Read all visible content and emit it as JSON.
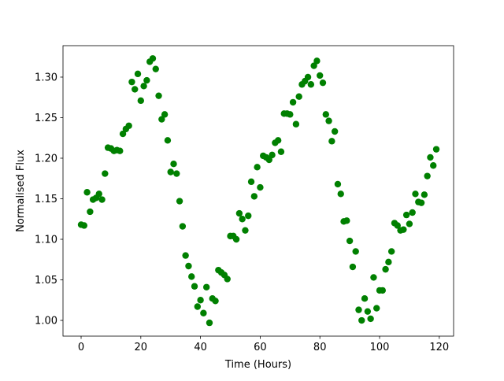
{
  "chart_data": {
    "type": "scatter",
    "x_label": "Time (Hours)",
    "y_label": "Normalised Flux",
    "color": "#008000",
    "xlim": [
      -6.07,
      124.8
    ],
    "ylim": [
      0.9806,
      1.3388
    ],
    "xticks": [
      0,
      20,
      40,
      60,
      80,
      100,
      120
    ],
    "yticks": [
      {
        "value": 1.0,
        "label": "1.00"
      },
      {
        "value": 1.05,
        "label": "1.05"
      },
      {
        "value": 1.1,
        "label": "1.10"
      },
      {
        "value": 1.15,
        "label": "1.15"
      },
      {
        "value": 1.2,
        "label": "1.20"
      },
      {
        "value": 1.25,
        "label": "1.25"
      },
      {
        "value": 1.3,
        "label": "1.30"
      }
    ],
    "grid": false,
    "x": [
      0,
      1,
      2,
      3,
      4,
      5,
      6,
      7,
      8,
      9,
      10,
      11,
      12,
      13,
      14,
      15,
      16,
      17,
      18,
      19,
      20,
      21,
      22,
      23,
      24,
      25,
      26,
      27,
      28,
      29,
      30,
      31,
      32,
      33,
      34,
      35,
      36,
      37,
      38,
      39,
      40,
      41,
      42,
      43,
      44,
      45,
      46,
      47,
      48,
      49,
      50,
      51,
      52,
      53,
      54,
      55,
      56,
      57,
      58,
      59,
      60,
      61,
      62,
      63,
      64,
      65,
      66,
      67,
      68,
      69,
      70,
      71,
      72,
      73,
      74,
      75,
      76,
      77,
      78,
      79,
      80,
      81,
      82,
      83,
      84,
      85,
      86,
      87,
      88,
      89,
      90,
      91,
      92,
      93,
      94,
      95,
      96,
      97,
      98,
      99,
      100,
      101,
      102,
      103,
      104,
      105,
      106,
      107,
      108,
      109,
      110,
      111,
      112,
      113,
      114,
      115,
      116,
      117,
      118,
      119
    ],
    "values": [
      1.118,
      1.117,
      1.158,
      1.134,
      1.149,
      1.151,
      1.156,
      1.149,
      1.181,
      1.213,
      1.212,
      1.209,
      1.21,
      1.209,
      1.23,
      1.236,
      1.24,
      1.294,
      1.285,
      1.304,
      1.271,
      1.289,
      1.296,
      1.319,
      1.323,
      1.31,
      1.277,
      1.248,
      1.254,
      1.222,
      1.183,
      1.193,
      1.181,
      1.147,
      1.116,
      1.08,
      1.067,
      1.054,
      1.042,
      1.017,
      1.025,
      1.009,
      1.041,
      0.997,
      1.027,
      1.024,
      1.062,
      1.059,
      1.056,
      1.051,
      1.104,
      1.104,
      1.1,
      1.132,
      1.125,
      1.111,
      1.129,
      1.171,
      1.153,
      1.189,
      1.164,
      1.203,
      1.201,
      1.198,
      1.204,
      1.219,
      1.222,
      1.208,
      1.255,
      1.255,
      1.254,
      1.269,
      1.242,
      1.276,
      1.291,
      1.295,
      1.3,
      1.291,
      1.314,
      1.32,
      1.302,
      1.293,
      1.254,
      1.246,
      1.221,
      1.233,
      1.168,
      1.156,
      1.122,
      1.123,
      1.098,
      1.066,
      1.085,
      1.013,
      1.0,
      1.027,
      1.011,
      1.002,
      1.053,
      1.015,
      1.037,
      1.037,
      1.063,
      1.072,
      1.085,
      1.12,
      1.117,
      1.111,
      1.112,
      1.13,
      1.119,
      1.133,
      1.156,
      1.146,
      1.145,
      1.155,
      1.178,
      1.201,
      1.191,
      1.211
    ]
  }
}
